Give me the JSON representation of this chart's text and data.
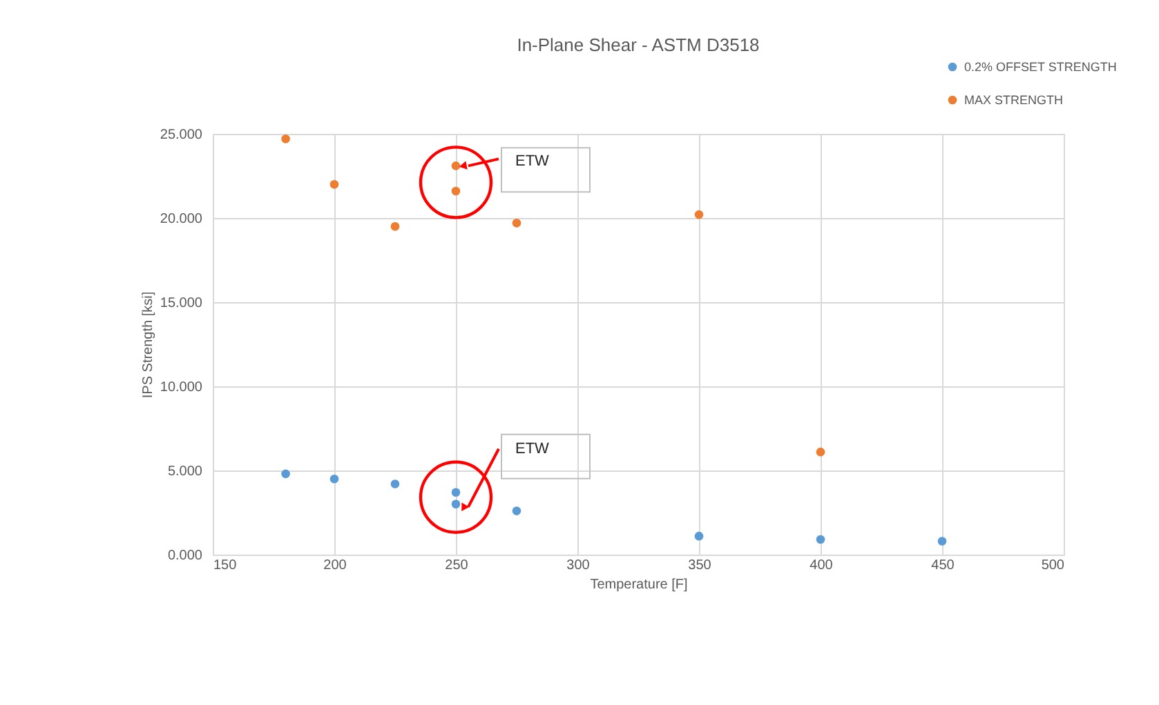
{
  "chart_data": {
    "type": "scatter",
    "title": "In-Plane Shear - ASTM D3518",
    "xlabel": "Temperature [F]",
    "ylabel": "IPS Strength [ksi]",
    "xlim": [
      150,
      500
    ],
    "xticks": [
      150,
      200,
      250,
      300,
      350,
      400,
      450,
      500
    ],
    "ylim": [
      0,
      25
    ],
    "yticks": [
      {
        "value": 0,
        "label": "0.000"
      },
      {
        "value": 5,
        "label": "5.000"
      },
      {
        "value": 10,
        "label": "10.000"
      },
      {
        "value": 15,
        "label": "15.000"
      },
      {
        "value": 20,
        "label": "20.000"
      },
      {
        "value": 25,
        "label": "25.000"
      }
    ],
    "grid": true,
    "legend": "top right",
    "marker": "circle",
    "series": [
      {
        "name": "0.2% OFFSET STRENGTH",
        "color": "#5b9bd5",
        "x": [
          180,
          200,
          225,
          250,
          250,
          275,
          350,
          400,
          450
        ],
        "values": [
          4.8,
          4.5,
          4.2,
          3.7,
          3.0,
          2.6,
          1.1,
          0.9,
          0.8
        ]
      },
      {
        "name": "MAX STRENGTH",
        "color": "#ed7d31",
        "x": [
          180,
          200,
          225,
          250,
          250,
          275,
          350,
          400
        ],
        "values": [
          24.7,
          22.0,
          19.5,
          23.1,
          21.6,
          19.7,
          20.2,
          6.1
        ]
      }
    ],
    "annotations": [
      {
        "text": "ETW",
        "x": 250,
        "y": 23.1
      },
      {
        "text": "ETW",
        "x": 250,
        "y": 3.0
      }
    ]
  }
}
